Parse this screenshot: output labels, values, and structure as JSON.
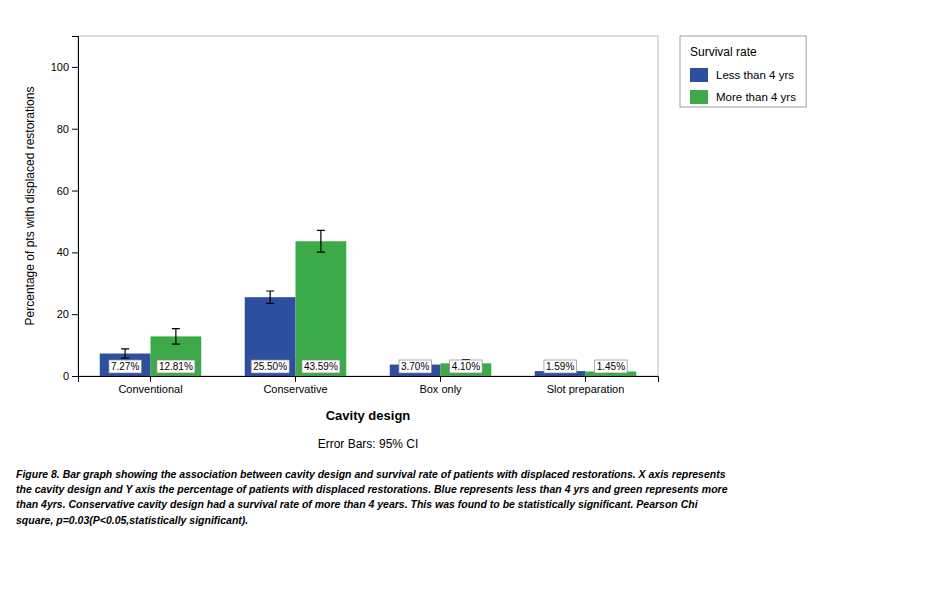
{
  "chart_data": {
    "type": "bar",
    "categories": [
      "Conventional",
      "Conservative",
      "Box only",
      "Slot preparation"
    ],
    "series": [
      {
        "name": "Less than 4 yrs",
        "color": "#2E4FA0",
        "values": [
          7.27,
          25.5,
          3.7,
          1.59
        ],
        "errors": [
          1.5,
          2.0,
          0.8,
          0.35
        ],
        "value_labels": [
          "7.27%",
          "25.50%",
          "3.70%",
          "1.59%"
        ]
      },
      {
        "name": "More than 4 yrs",
        "color": "#3DAA4A",
        "values": [
          12.81,
          43.59,
          4.1,
          1.45
        ],
        "errors": [
          2.5,
          3.5,
          1.2,
          0.35
        ],
        "value_labels": [
          "12.81%",
          "43.59%",
          "4.10%",
          "1.45%"
        ]
      }
    ],
    "xlabel": "Cavity design",
    "ylabel": "Percentage of pts with displaced restorations",
    "ylim": [
      0,
      110
    ],
    "yticks": [
      0,
      20,
      40,
      60,
      80,
      100
    ],
    "grid": false,
    "legend": "right",
    "legend_title": "Survival rate",
    "data_labels": true,
    "annotations": [
      "Error Bars: 95% CI"
    ],
    "caption": [
      "Figure 8. Bar graph showing the association between cavity design and survival rate of patients with displaced restorations. X axis represents",
      "the cavity design and Y axis the percentage of patients with displaced restorations. Blue represents less than 4 yrs and green represents more",
      "than 4yrs. Conservative cavity design had a survival rate of more than 4 years. This was found to be statistically significant. Pearson Chi",
      "square, p=0.03(P<0.05,statistically significant)."
    ]
  }
}
